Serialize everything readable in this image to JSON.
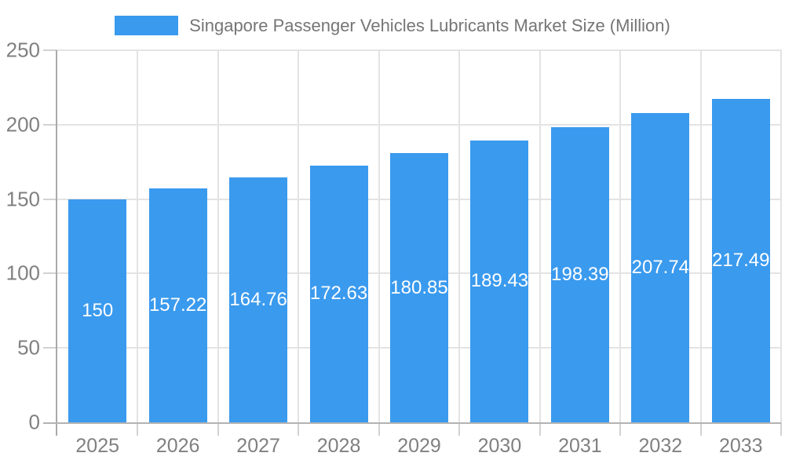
{
  "chart_data": {
    "type": "bar",
    "title": "Singapore Passenger Vehicles Lubricants Market Size (Million)",
    "categories": [
      "2025",
      "2026",
      "2027",
      "2028",
      "2029",
      "2030",
      "2031",
      "2032",
      "2033"
    ],
    "values": [
      150,
      157.22,
      164.76,
      172.63,
      180.85,
      189.43,
      198.39,
      207.74,
      217.49
    ],
    "value_labels": [
      "150",
      "157.22",
      "164.76",
      "172.63",
      "180.85",
      "189.43",
      "198.39",
      "207.74",
      "217.49"
    ],
    "xlabel": "",
    "ylabel": "",
    "ylim": [
      0,
      250
    ],
    "yticks": [
      0,
      50,
      100,
      150,
      200,
      250
    ],
    "grid": true,
    "legend_position": "top",
    "colors": {
      "bar": "#3a9aee",
      "value_label_text": "#ffffff",
      "axis_tick_text": "#808080",
      "legend_text": "#757575",
      "gridline": "#e3e3e3",
      "axis_line": "#a9a9a9",
      "axis_bottom_line": "#b3b3b3",
      "minor_tick": "#d2d2d2",
      "background": "#ffffff"
    }
  }
}
